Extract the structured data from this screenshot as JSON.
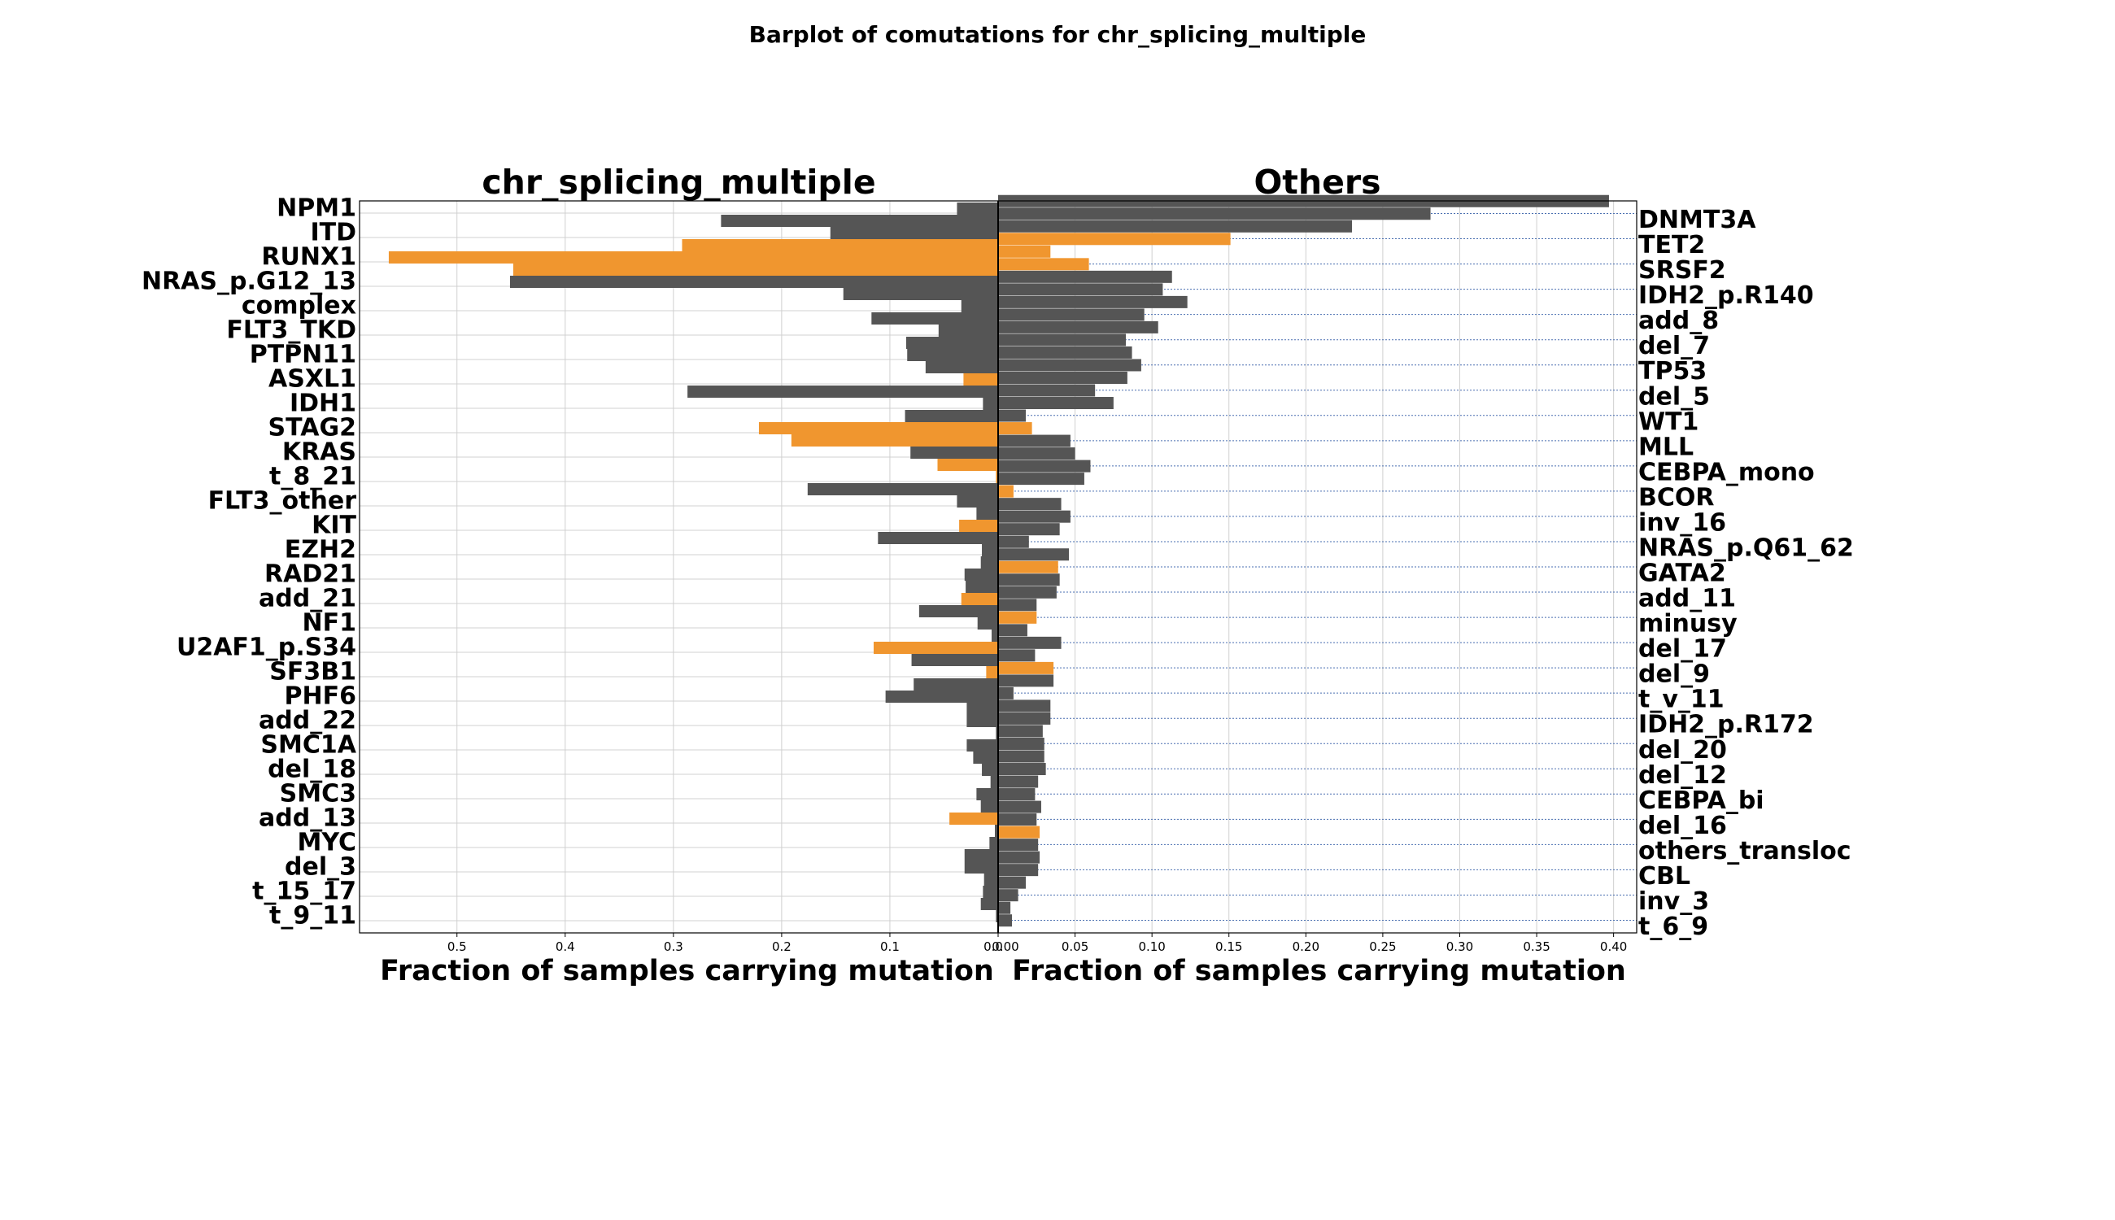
{
  "suptitle": "Barplot  of comutations for chr_splicing_multiple",
  "colors": {
    "highlight": "#f0962f",
    "normal": "#555555",
    "grid": "#d0d0d0",
    "dotted": "#4a6fb0"
  },
  "chart_data": [
    {
      "type": "bar",
      "orientation": "horizontal",
      "direction": "leftward",
      "title": "chr_splicing_multiple",
      "xlabel": "Fraction of samples carrying mutation",
      "xlim": [
        0.59,
        0.0
      ],
      "xticks": [
        "0.5",
        "0.4",
        "0.3",
        "0.2",
        "0.1",
        "0.0"
      ],
      "grid": true,
      "categories": [
        "NPM1",
        "ITD",
        "RUNX1",
        "NRAS_p.G12_13",
        "complex",
        "FLT3_TKD",
        "PTPN11",
        "ASXL1",
        "IDH1",
        "STAG2",
        "KRAS",
        "t_8_21",
        "FLT3_other",
        "KIT",
        "EZH2",
        "RAD21",
        "add_21",
        "NF1",
        "U2AF1_p.S34",
        "SF3B1",
        "PHF6",
        "add_22",
        "SMC1A",
        "del_18",
        "SMC3",
        "add_13",
        "MYC",
        "del_3",
        "t_15_17",
        "t_9_11"
      ],
      "values": [
        0.038,
        0.155,
        0.563,
        0.451,
        0.034,
        0.055,
        0.084,
        0.032,
        0.014,
        0.221,
        0.081,
        0.002,
        0.038,
        0.036,
        0.015,
        0.031,
        0.034,
        0.019,
        0.115,
        0.011,
        0.104,
        0.029,
        0.029,
        0.015,
        0.02,
        0.045,
        0.008,
        0.031,
        0.014,
        0.002
      ],
      "values_2": [
        0.256,
        0.292,
        0.448,
        0.143,
        0.117,
        0.085,
        0.067,
        0.287,
        0.086,
        0.191,
        0.056,
        0.176,
        0.02,
        0.111,
        0.016,
        0.03,
        0.073,
        0.006,
        0.08,
        0.078,
        0.029,
        0.002,
        0.023,
        0.007,
        0.016,
        0.003,
        0.031,
        0.013,
        0.016,
        0.0
      ],
      "highlight": [
        false,
        false,
        true,
        false,
        false,
        false,
        false,
        true,
        false,
        true,
        false,
        true,
        false,
        true,
        false,
        false,
        true,
        false,
        true,
        true,
        false,
        false,
        false,
        false,
        false,
        true,
        false,
        false,
        false,
        false
      ],
      "highlight_2": [
        false,
        true,
        true,
        false,
        false,
        false,
        false,
        false,
        false,
        true,
        true,
        false,
        false,
        false,
        false,
        false,
        false,
        false,
        false,
        false,
        false,
        false,
        false,
        false,
        false,
        false,
        false,
        false,
        false,
        false
      ]
    },
    {
      "type": "bar",
      "orientation": "horizontal",
      "title": "Others",
      "xlabel": "Fraction of samples carrying mutation",
      "xlim": [
        0.0,
        0.415
      ],
      "xticks": [
        "0.00",
        "0.05",
        "0.10",
        "0.15",
        "0.20",
        "0.25",
        "0.30",
        "0.35",
        "0.40"
      ],
      "grid": true,
      "categories": [
        "DNMT3A",
        "TET2",
        "SRSF2",
        "IDH2_p.R140",
        "add_8",
        "del_7",
        "TP53",
        "del_5",
        "WT1",
        "MLL",
        "CEBPA_mono",
        "BCOR",
        "inv_16",
        "NRAS_p.Q61_62",
        "GATA2",
        "add_11",
        "minusy",
        "del_17",
        "del_9",
        "t_v_11",
        "IDH2_p.R172",
        "del_20",
        "del_12",
        "CEBPA_bi",
        "del_16",
        "others_transloc",
        "CBL",
        "inv_3",
        "t_6_9"
      ],
      "values": [
        0.397,
        0.23,
        0.034,
        0.113,
        0.123,
        0.104,
        0.087,
        0.084,
        0.075,
        0.022,
        0.05,
        0.056,
        0.041,
        0.04,
        0.046,
        0.04,
        0.025,
        0.019,
        0.024,
        0.036,
        0.034,
        0.029,
        0.03,
        0.026,
        0.028,
        0.027,
        0.027,
        0.018,
        0.008
      ],
      "values_2": [
        0.281,
        0.151,
        0.059,
        0.107,
        0.095,
        0.083,
        0.093,
        0.063,
        0.018,
        0.047,
        0.06,
        0.01,
        0.047,
        0.02,
        0.039,
        0.038,
        0.025,
        0.041,
        0.036,
        0.01,
        0.034,
        0.03,
        0.031,
        0.024,
        0.025,
        0.026,
        0.026,
        0.013,
        0.009
      ],
      "highlight": [
        false,
        false,
        true,
        false,
        false,
        false,
        false,
        false,
        false,
        true,
        false,
        false,
        false,
        false,
        false,
        false,
        false,
        false,
        false,
        false,
        false,
        false,
        false,
        false,
        false,
        true,
        false,
        false,
        false
      ],
      "highlight_2": [
        false,
        true,
        true,
        false,
        false,
        false,
        false,
        false,
        false,
        false,
        false,
        true,
        false,
        false,
        true,
        false,
        true,
        false,
        true,
        false,
        false,
        false,
        false,
        false,
        false,
        false,
        false,
        false,
        false
      ]
    }
  ]
}
